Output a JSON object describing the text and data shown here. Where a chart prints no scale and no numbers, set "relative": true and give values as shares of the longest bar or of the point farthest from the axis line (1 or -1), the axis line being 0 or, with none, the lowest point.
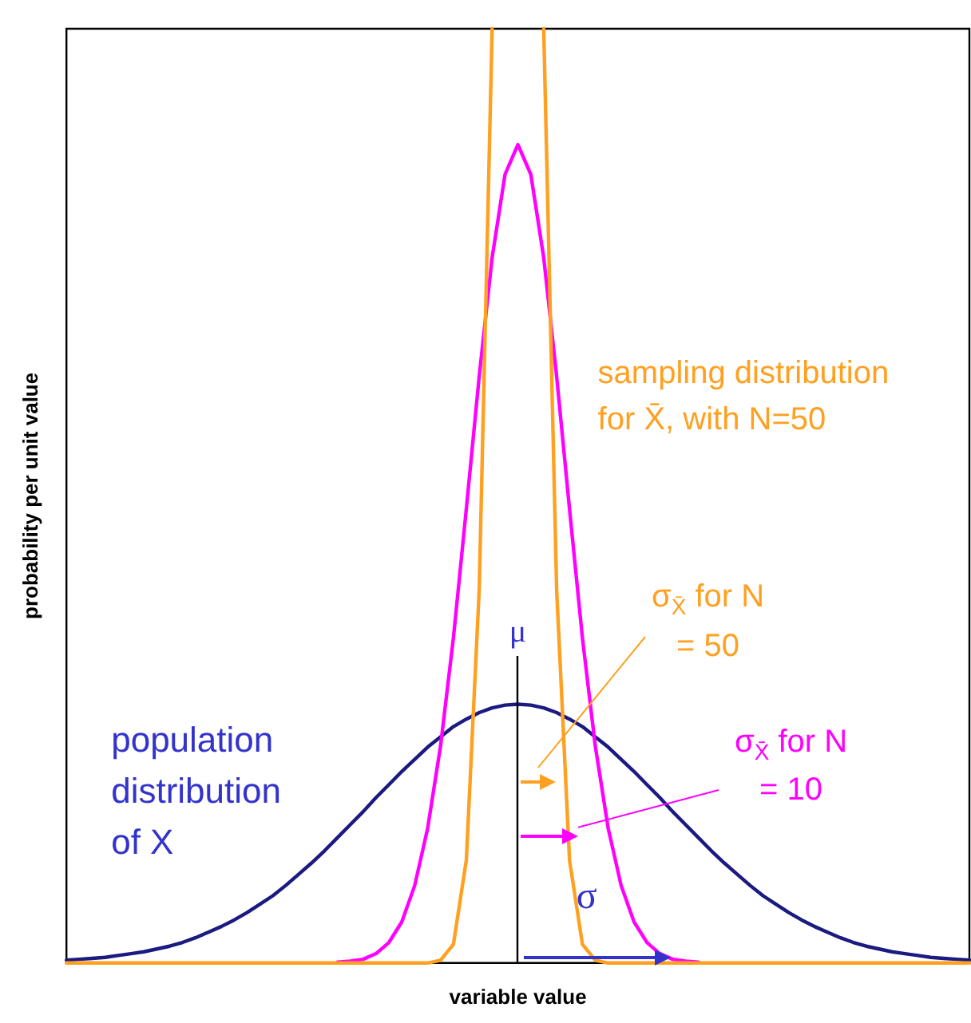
{
  "chart_data": {
    "type": "line",
    "relative": true,
    "xlabel": "variable value",
    "ylabel": "probability per unit value",
    "marker": "none",
    "legend": false,
    "grid": false,
    "categories": [
      null,
      null,
      null,
      null,
      null,
      null,
      null,
      null,
      null,
      null,
      null,
      null,
      null,
      null,
      null,
      null,
      null,
      null,
      null,
      null,
      null,
      null,
      null,
      null,
      null,
      null,
      null,
      null,
      null,
      null,
      null,
      null,
      null,
      null,
      null,
      null,
      null,
      null,
      null,
      null,
      null,
      null,
      null,
      null,
      null,
      null,
      null,
      null,
      null,
      null,
      null,
      null,
      null,
      null,
      null,
      null,
      null,
      null,
      null,
      null,
      null,
      null,
      null,
      null,
      null,
      null,
      null,
      null,
      null,
      null,
      null
    ],
    "series": [
      {
        "color": "#1a1a80",
        "values": [
          0.003,
          0.004,
          0.005,
          0.006,
          0.008,
          0.01,
          0.012,
          0.015,
          0.018,
          0.022,
          0.027,
          0.033,
          0.039,
          0.046,
          0.054,
          0.063,
          0.072,
          0.083,
          0.095,
          0.107,
          0.12,
          0.134,
          0.148,
          0.162,
          0.177,
          0.191,
          0.205,
          0.218,
          0.231,
          0.242,
          0.253,
          0.261,
          0.268,
          0.273,
          0.276,
          0.277,
          0.276,
          0.273,
          0.268,
          0.261,
          0.253,
          0.242,
          0.231,
          0.218,
          0.205,
          0.191,
          0.177,
          0.162,
          0.148,
          0.134,
          0.12,
          0.107,
          0.095,
          0.083,
          0.072,
          0.063,
          0.054,
          0.046,
          0.039,
          0.033,
          0.027,
          0.022,
          0.018,
          0.015,
          0.012,
          0.01,
          0.008,
          0.006,
          0.005,
          0.004,
          0.003
        ]
      },
      {
        "color": "#ff00ff",
        "values": [
          null,
          null,
          null,
          null,
          null,
          null,
          null,
          null,
          null,
          null,
          null,
          null,
          null,
          null,
          null,
          null,
          null,
          null,
          null,
          null,
          null,
          0.001,
          0.002,
          0.004,
          0.01,
          0.022,
          0.044,
          0.083,
          0.144,
          0.232,
          0.348,
          0.486,
          0.628,
          0.755,
          0.844,
          0.876,
          0.844,
          0.755,
          0.628,
          0.486,
          0.348,
          0.232,
          0.144,
          0.083,
          0.044,
          0.022,
          0.01,
          0.004,
          0.002,
          0.001,
          null,
          null,
          null,
          null,
          null,
          null,
          null,
          null,
          null,
          null,
          null,
          null,
          null,
          null,
          null,
          null,
          null,
          null,
          null,
          null,
          null
        ]
      },
      {
        "color": "#ffa020",
        "values": [
          0,
          0,
          0,
          0,
          0,
          0,
          0,
          0,
          0,
          0,
          0,
          0,
          0,
          0,
          0,
          0,
          0,
          0,
          0,
          0,
          0,
          0,
          0,
          0,
          0,
          0,
          0,
          0,
          0,
          0.003,
          0.02,
          0.11,
          0.4,
          1,
          null,
          null,
          null,
          1,
          0.4,
          0.11,
          0.02,
          0.003,
          0,
          0,
          0,
          0,
          0,
          0,
          0,
          0,
          0,
          0,
          0,
          0,
          0,
          0,
          0,
          0,
          0,
          0,
          0,
          0,
          0,
          0,
          0,
          0,
          0,
          0,
          0,
          0,
          0
        ]
      }
    ],
    "annotations": [
      "sampling distribution for X̄, with N=50",
      "σ$_{X̄}$ for N = 50",
      "σ$_{X̄}$ for N = 10",
      "population distribution of X",
      "μ",
      "σ"
    ]
  }
}
